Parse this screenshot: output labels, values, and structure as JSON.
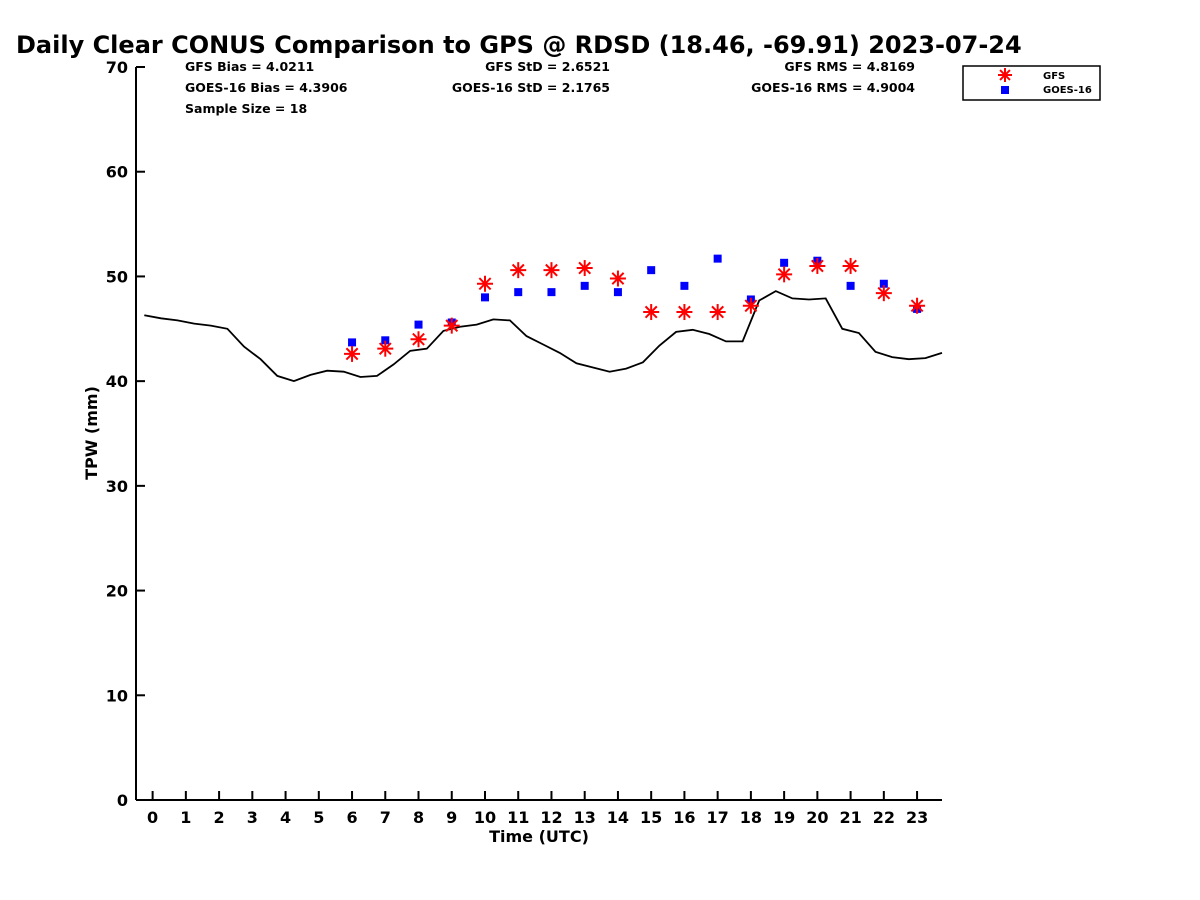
{
  "chart_data": {
    "type": "scatter",
    "title": "Daily Clear CONUS Comparison to GPS @ RDSD (18.46, -69.91) 2023-07-24",
    "xlabel": "Time (UTC)",
    "ylabel": "TPW (mm)",
    "xlim": [
      -0.5,
      23.75
    ],
    "ylim": [
      0,
      70
    ],
    "x_ticks": [
      0,
      1,
      2,
      3,
      4,
      5,
      6,
      7,
      8,
      9,
      10,
      11,
      12,
      13,
      14,
      15,
      16,
      17,
      18,
      19,
      20,
      21,
      22,
      23
    ],
    "y_ticks": [
      0,
      10,
      20,
      30,
      40,
      50,
      60,
      70
    ],
    "grid": false,
    "legend_position": "top-right",
    "stats": {
      "gfs_bias": "GFS Bias = 4.0211",
      "goes_bias": "GOES-16 Bias = 4.3906",
      "sample_size": "Sample Size = 18",
      "gfs_std": "GFS StD = 2.6521",
      "goes_std": "GOES-16 StD = 2.1765",
      "gfs_rms": "GFS RMS = 4.8169",
      "goes_rms": "GOES-16 RMS = 4.9004"
    },
    "series": [
      {
        "name": "GFS",
        "marker": "asterisk",
        "color": "#ff0000",
        "x": [
          6,
          7,
          8,
          9,
          10,
          11,
          12,
          13,
          14,
          15,
          16,
          17,
          18,
          19,
          20,
          21,
          22,
          23
        ],
        "y": [
          42.6,
          43.1,
          44.0,
          45.3,
          49.3,
          50.6,
          50.6,
          50.8,
          49.8,
          46.6,
          46.6,
          46.6,
          47.2,
          50.2,
          51.0,
          51.0,
          48.4,
          47.2
        ]
      },
      {
        "name": "GOES-16",
        "marker": "square",
        "color": "#0000ff",
        "x": [
          6,
          7,
          8,
          9,
          10,
          11,
          12,
          13,
          14,
          15,
          16,
          17,
          18,
          19,
          20,
          21,
          22,
          23
        ],
        "y": [
          43.7,
          43.9,
          45.4,
          45.6,
          48.0,
          48.5,
          48.5,
          49.1,
          48.5,
          50.6,
          49.1,
          51.7,
          47.8,
          51.3,
          51.5,
          49.1,
          49.3,
          46.9
        ]
      },
      {
        "marker": "line",
        "color": "#000000",
        "x": [
          -0.25,
          0.25,
          0.75,
          1.25,
          1.75,
          2.25,
          2.75,
          3.25,
          3.75,
          4.25,
          4.75,
          5.25,
          5.75,
          6.25,
          6.75,
          7.25,
          7.75,
          8.25,
          8.75,
          9.25,
          9.75,
          10.25,
          10.75,
          11.25,
          11.75,
          12.25,
          12.75,
          13.25,
          13.75,
          14.25,
          14.75,
          15.25,
          15.75,
          16.25,
          16.75,
          17.25,
          17.75,
          18.25,
          18.75,
          19.25,
          19.75,
          20.25,
          20.75,
          21.25,
          21.75,
          22.25,
          22.75,
          23.25,
          23.75
        ],
        "y": [
          46.3,
          46.0,
          45.8,
          45.5,
          45.3,
          45.0,
          43.3,
          42.1,
          40.5,
          40.0,
          40.6,
          41.0,
          40.9,
          40.4,
          40.5,
          41.6,
          42.9,
          43.1,
          44.8,
          45.2,
          45.4,
          45.9,
          45.8,
          44.3,
          43.5,
          42.7,
          41.7,
          41.3,
          40.9,
          41.2,
          41.8,
          43.4,
          44.7,
          44.9,
          44.5,
          43.8,
          43.8,
          47.7,
          48.6,
          47.9,
          47.8,
          47.9,
          45.0,
          44.6,
          42.8,
          42.3,
          42.1,
          42.2,
          42.7
        ]
      }
    ]
  }
}
